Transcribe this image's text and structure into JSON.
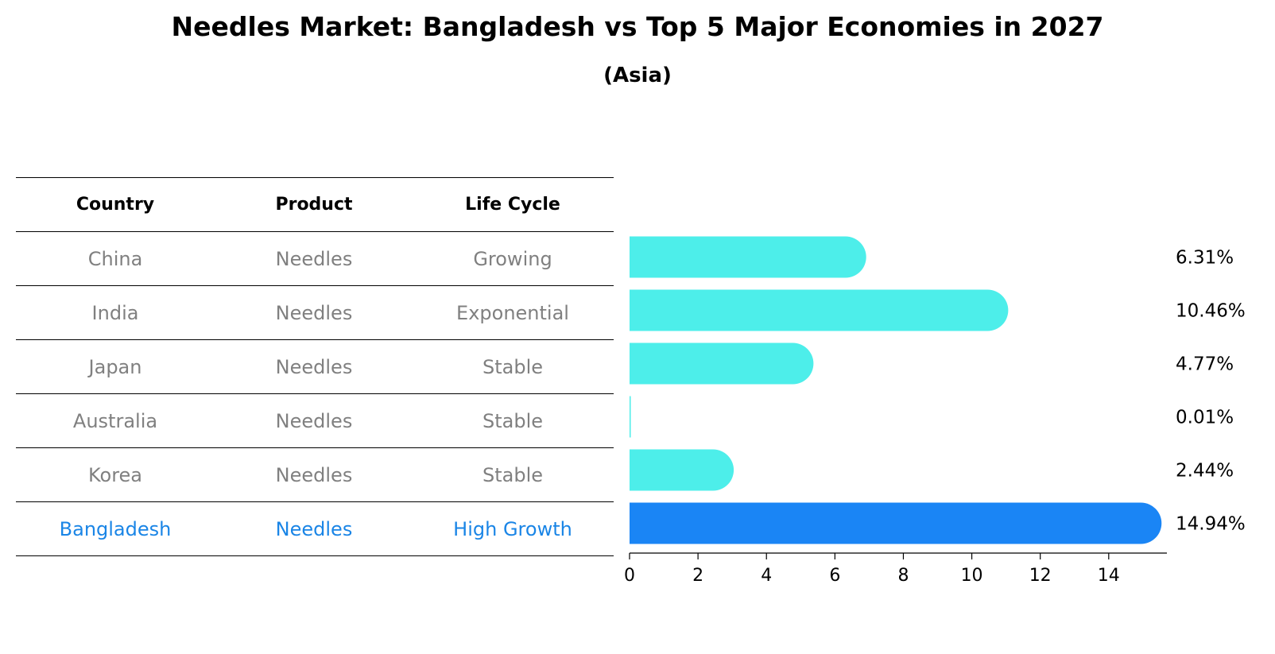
{
  "title": "Needles Market: Bangladesh vs Top 5 Major Economies in 2027",
  "subtitle": "(Asia)",
  "table": {
    "headers": [
      "Country",
      "Product",
      "Life Cycle"
    ],
    "rows": [
      {
        "country": "China",
        "product": "Needles",
        "life_cycle": "Growing"
      },
      {
        "country": "India",
        "product": "Needles",
        "life_cycle": "Exponential"
      },
      {
        "country": "Japan",
        "product": "Needles",
        "life_cycle": "Stable"
      },
      {
        "country": "Australia",
        "product": "Needles",
        "life_cycle": "Stable"
      },
      {
        "country": "Korea",
        "product": "Needles",
        "life_cycle": "Stable"
      },
      {
        "country": "Bangladesh",
        "product": "Needles",
        "life_cycle": "High Growth"
      }
    ]
  },
  "colors": {
    "bar": "#4deeea",
    "highlight_bar": "#1a85f5",
    "row_text": "#808080",
    "highlight_text": "#1a85e6"
  },
  "chart_data": {
    "type": "bar",
    "orientation": "horizontal",
    "categories": [
      "China",
      "India",
      "Japan",
      "Australia",
      "Korea",
      "Bangladesh"
    ],
    "values": [
      6.31,
      10.46,
      4.77,
      0.01,
      2.44,
      14.94
    ],
    "value_labels": [
      "6.31%",
      "10.46%",
      "4.77%",
      "0.01%",
      "2.44%",
      "14.94%"
    ],
    "highlight": "Bangladesh",
    "xlim": [
      0,
      15.7
    ],
    "xticks": [
      0,
      2,
      4,
      6,
      8,
      10,
      12,
      14
    ],
    "xlabel": "",
    "ylabel": "",
    "grid": false
  }
}
